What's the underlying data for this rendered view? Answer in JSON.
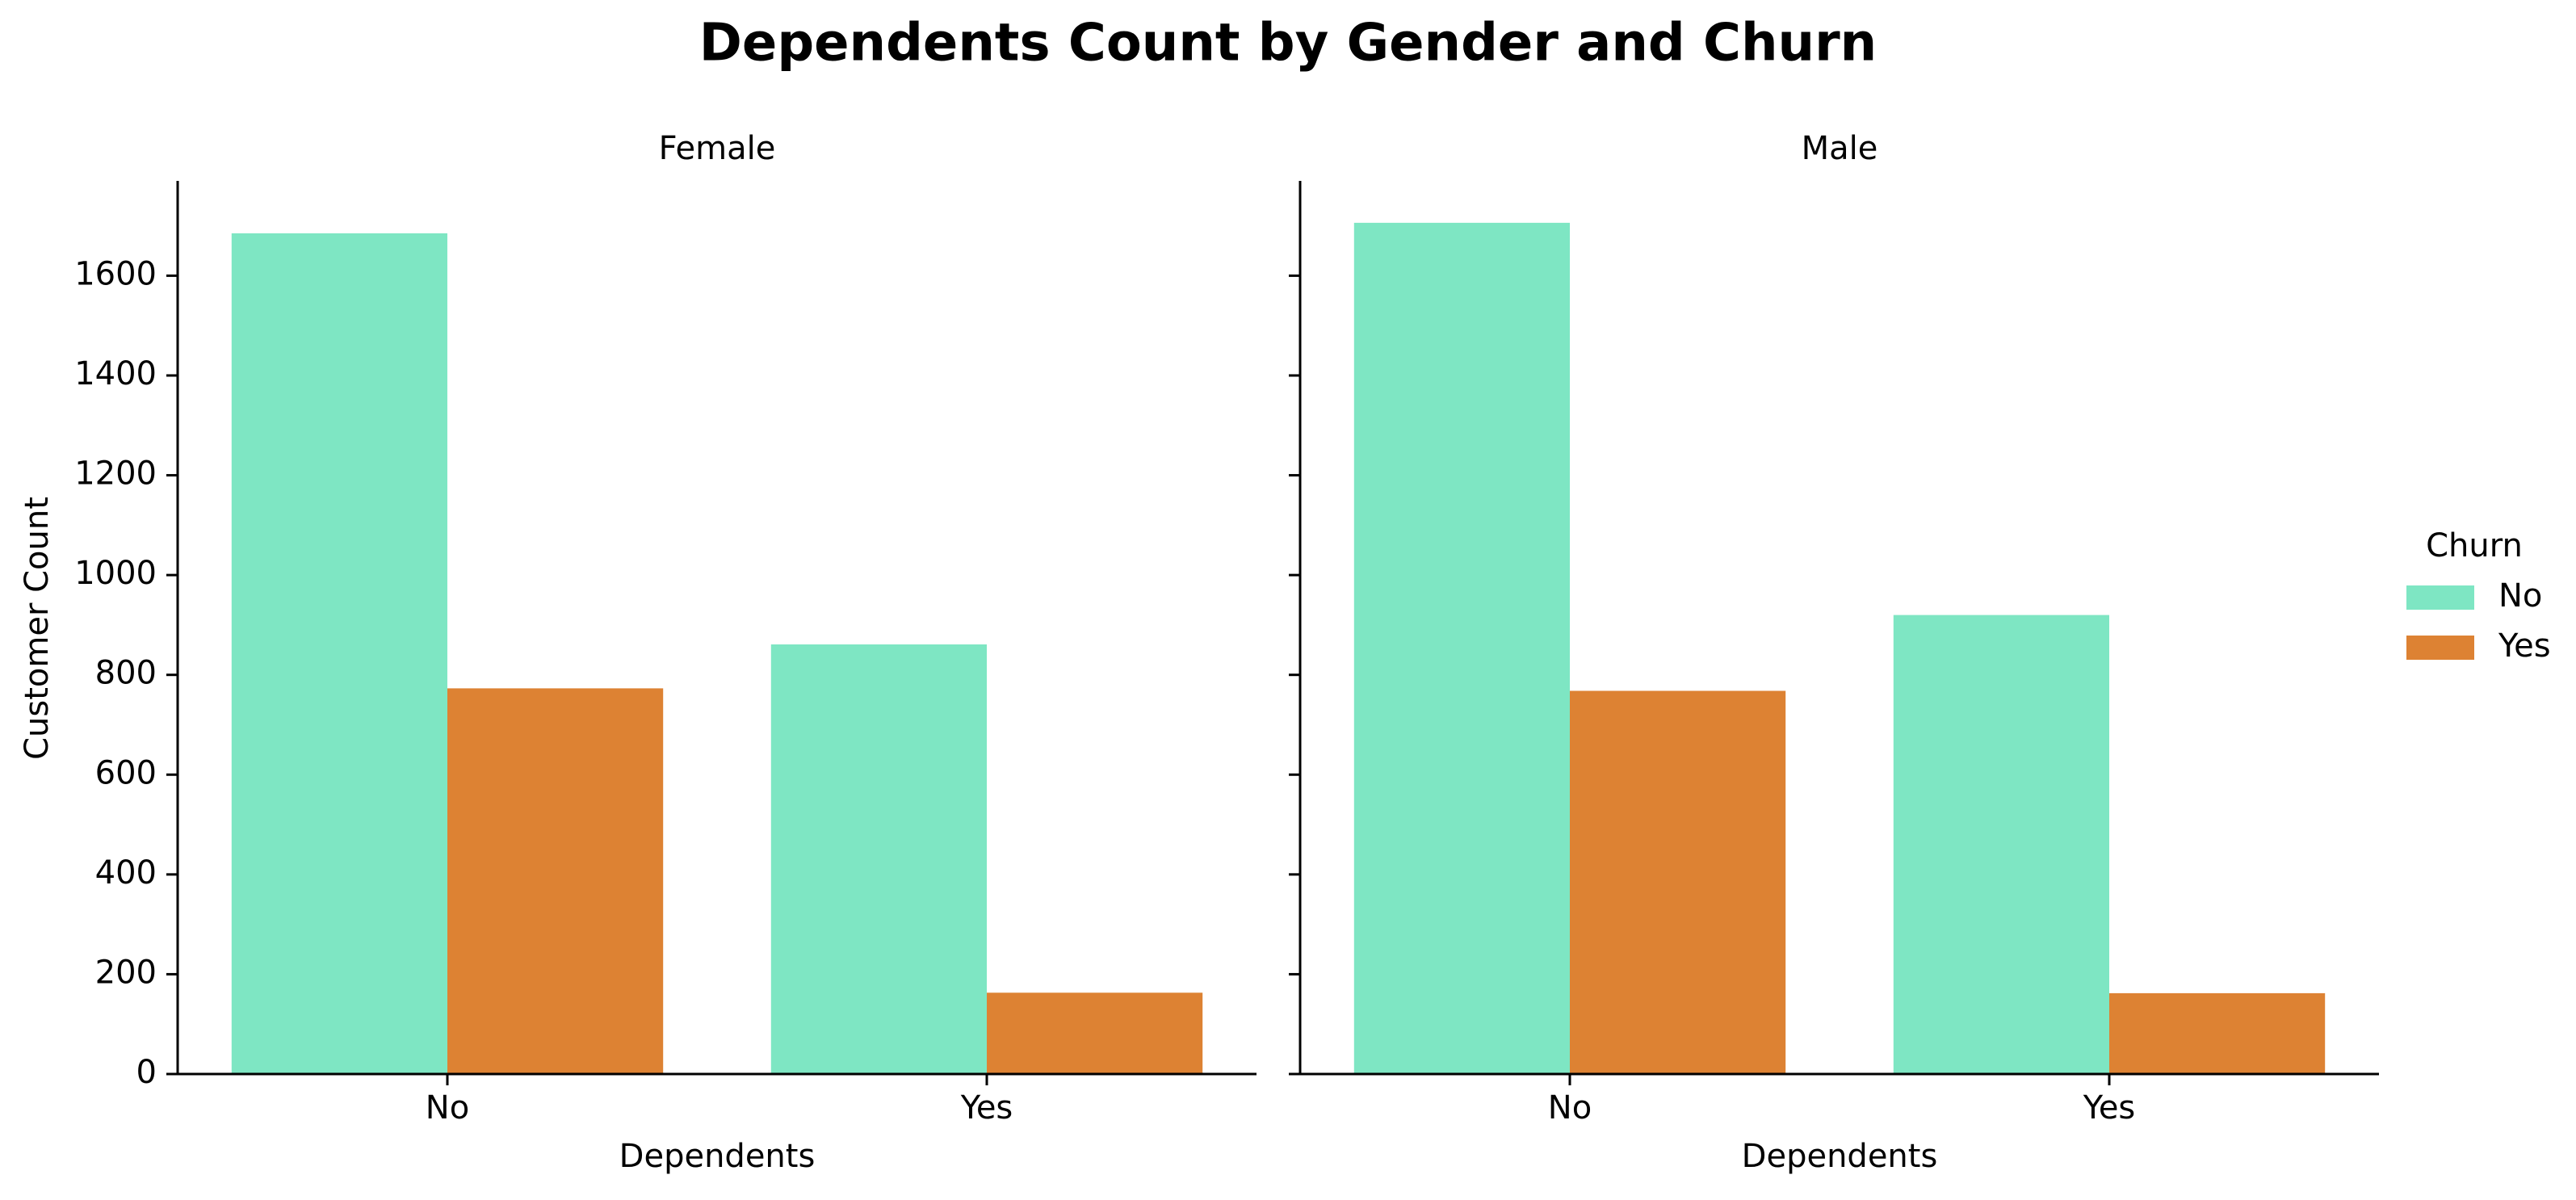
{
  "chart_data": {
    "type": "bar",
    "title": "Dependents Count by Gender and Churn",
    "xlabel": "Dependents",
    "ylabel": "Customer Count",
    "categories": [
      "No",
      "Yes"
    ],
    "ylim": [
      0,
      1790
    ],
    "yticks": [
      0,
      200,
      400,
      600,
      800,
      1000,
      1200,
      1400,
      1600
    ],
    "grid": false,
    "legend": {
      "title": "Churn",
      "placement": "right",
      "entries": [
        "No",
        "Yes"
      ]
    },
    "series_colors": {
      "No": "#7ee6c3",
      "Yes": "#dd8233"
    },
    "panels": [
      {
        "title": "Female",
        "series": [
          {
            "name": "No",
            "values": [
              1685,
              861
            ]
          },
          {
            "name": "Yes",
            "values": [
              773,
              163
            ]
          }
        ]
      },
      {
        "title": "Male",
        "series": [
          {
            "name": "No",
            "values": [
              1706,
              920
            ]
          },
          {
            "name": "Yes",
            "values": [
              768,
              162
            ]
          }
        ]
      }
    ]
  }
}
